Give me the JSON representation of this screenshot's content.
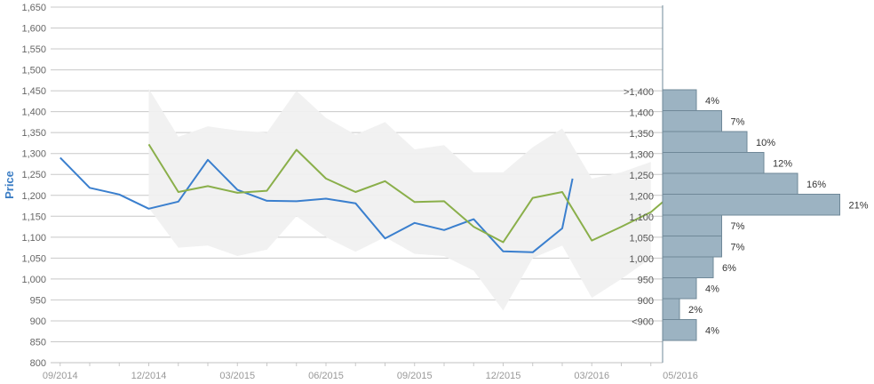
{
  "chart_data": {
    "type": "line",
    "ylabel": "Price",
    "ylim": [
      800,
      1650
    ],
    "yticks": [
      "800",
      "850",
      "900",
      "950",
      "1,000",
      "1,050",
      "1,100",
      "1,150",
      "1,200",
      "1,250",
      "1,300",
      "1,350",
      "1,400",
      "1,450",
      "1,500",
      "1,550",
      "1,600",
      "1,650"
    ],
    "xticks": [
      "09/2014",
      "12/2014",
      "03/2015",
      "06/2015",
      "09/2015",
      "12/2015",
      "03/2016",
      "05/2016"
    ],
    "colors": {
      "blue": "#3a7fce",
      "green": "#8aaf4a",
      "band": "#f0f0f0",
      "bar": "#9cb3c2",
      "bar_border": "#6f8898"
    },
    "band": {
      "x": [
        4,
        5,
        6,
        7,
        8,
        9,
        10,
        11,
        12,
        13,
        14,
        15,
        16,
        17,
        18,
        19,
        20,
        21
      ],
      "upper": [
        1455,
        1340,
        1365,
        1355,
        1350,
        1450,
        1385,
        1345,
        1375,
        1310,
        1320,
        1255,
        1255,
        1315,
        1360,
        1240,
        1255,
        1280
      ],
      "lower": [
        1170,
        1075,
        1080,
        1055,
        1070,
        1150,
        1100,
        1065,
        1100,
        1060,
        1055,
        1020,
        925,
        1050,
        1080,
        955,
        1000,
        1050
      ]
    },
    "series": [
      {
        "color": "blue",
        "x": [
          1,
          2,
          3,
          4,
          5,
          6,
          7,
          8,
          9,
          10,
          11,
          12,
          13,
          14,
          15,
          16,
          17,
          18,
          18.35
        ],
        "y": [
          1290,
          1218,
          1202,
          1168,
          1185,
          1285,
          1213,
          1187,
          1186,
          1192,
          1181,
          1097,
          1134,
          1117,
          1143,
          1066,
          1064,
          1121,
          1240
        ]
      },
      {
        "color": "green",
        "x": [
          4,
          5,
          6,
          7,
          8,
          9,
          10,
          11,
          12,
          13,
          14,
          15,
          16,
          17,
          18,
          19,
          20,
          21,
          21.5
        ],
        "y": [
          1322,
          1208,
          1222,
          1206,
          1211,
          1309,
          1240,
          1208,
          1234,
          1184,
          1186,
          1125,
          1088,
          1194,
          1208,
          1092,
          1125,
          1160,
          1190
        ]
      }
    ],
    "distribution": [
      {
        "label": ">1,400",
        "pct": "4%",
        "value": 4
      },
      {
        "label": "1,400",
        "pct": "7%",
        "value": 7
      },
      {
        "label": "1,350",
        "pct": "10%",
        "value": 10
      },
      {
        "label": "1,300",
        "pct": "12%",
        "value": 12
      },
      {
        "label": "1,250",
        "pct": "16%",
        "value": 16
      },
      {
        "label": "1,200",
        "pct": "21%",
        "value": 21
      },
      {
        "label": "1,100",
        "pct": "7%",
        "value": 7
      },
      {
        "label": "1,050",
        "pct": "7%",
        "value": 7
      },
      {
        "label": "1,000",
        "pct": "6%",
        "value": 6
      },
      {
        "label": "950",
        "pct": "4%",
        "value": 4
      },
      {
        "label": "900",
        "pct": "2%",
        "value": 2
      },
      {
        "label": "<900",
        "pct": "4%",
        "value": 4
      }
    ]
  }
}
